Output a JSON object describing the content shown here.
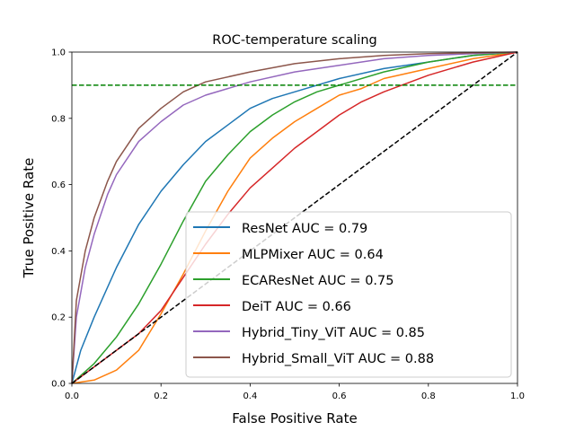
{
  "chart_data": {
    "type": "line",
    "title": "ROC-temperature scaling",
    "xlabel": "False Positive Rate",
    "ylabel": "True Positive Rate",
    "xlim": [
      0,
      1
    ],
    "ylim": [
      0,
      1
    ],
    "xticks": [
      "0.0",
      "0.2",
      "0.4",
      "0.6",
      "0.8",
      "1.0"
    ],
    "yticks": [
      "0.0",
      "0.2",
      "0.4",
      "0.6",
      "0.8",
      "1.0"
    ],
    "grid": false,
    "legend_placement": "lower right",
    "reference_lines": [
      {
        "kind": "diagonal",
        "color": "#000000",
        "style": "dashed",
        "points": [
          [
            0,
            0
          ],
          [
            1,
            1
          ]
        ]
      },
      {
        "kind": "horizontal",
        "color": "#008000",
        "style": "dashed",
        "y": 0.9
      }
    ],
    "series": [
      {
        "name": "ResNet AUC = 0.79",
        "color": "#1f77b4",
        "points": [
          [
            0,
            0
          ],
          [
            0.02,
            0.1
          ],
          [
            0.05,
            0.2
          ],
          [
            0.1,
            0.35
          ],
          [
            0.15,
            0.48
          ],
          [
            0.2,
            0.58
          ],
          [
            0.25,
            0.66
          ],
          [
            0.3,
            0.73
          ],
          [
            0.35,
            0.78
          ],
          [
            0.4,
            0.83
          ],
          [
            0.45,
            0.86
          ],
          [
            0.5,
            0.88
          ],
          [
            0.6,
            0.92
          ],
          [
            0.7,
            0.95
          ],
          [
            0.8,
            0.97
          ],
          [
            0.9,
            0.99
          ],
          [
            1,
            1
          ]
        ]
      },
      {
        "name": "MLPMixer AUC = 0.64",
        "color": "#ff7f0e",
        "points": [
          [
            0,
            0
          ],
          [
            0.05,
            0.01
          ],
          [
            0.1,
            0.04
          ],
          [
            0.15,
            0.1
          ],
          [
            0.2,
            0.21
          ],
          [
            0.25,
            0.33
          ],
          [
            0.3,
            0.46
          ],
          [
            0.35,
            0.58
          ],
          [
            0.4,
            0.68
          ],
          [
            0.45,
            0.74
          ],
          [
            0.5,
            0.79
          ],
          [
            0.55,
            0.83
          ],
          [
            0.6,
            0.87
          ],
          [
            0.65,
            0.89
          ],
          [
            0.7,
            0.92
          ],
          [
            0.8,
            0.95
          ],
          [
            0.9,
            0.98
          ],
          [
            1,
            1
          ]
        ]
      },
      {
        "name": "ECAResNet AUC = 0.75",
        "color": "#2ca02c",
        "points": [
          [
            0,
            0
          ],
          [
            0.05,
            0.06
          ],
          [
            0.1,
            0.14
          ],
          [
            0.15,
            0.24
          ],
          [
            0.2,
            0.36
          ],
          [
            0.25,
            0.49
          ],
          [
            0.3,
            0.61
          ],
          [
            0.35,
            0.69
          ],
          [
            0.4,
            0.76
          ],
          [
            0.45,
            0.81
          ],
          [
            0.5,
            0.85
          ],
          [
            0.55,
            0.88
          ],
          [
            0.6,
            0.9
          ],
          [
            0.7,
            0.94
          ],
          [
            0.8,
            0.97
          ],
          [
            0.9,
            0.99
          ],
          [
            1,
            1
          ]
        ]
      },
      {
        "name": "DeiT AUC = 0.66",
        "color": "#d62728",
        "points": [
          [
            0,
            0
          ],
          [
            0.05,
            0.05
          ],
          [
            0.1,
            0.1
          ],
          [
            0.15,
            0.15
          ],
          [
            0.2,
            0.22
          ],
          [
            0.25,
            0.32
          ],
          [
            0.3,
            0.42
          ],
          [
            0.35,
            0.51
          ],
          [
            0.4,
            0.59
          ],
          [
            0.45,
            0.65
          ],
          [
            0.5,
            0.71
          ],
          [
            0.55,
            0.76
          ],
          [
            0.6,
            0.81
          ],
          [
            0.65,
            0.85
          ],
          [
            0.7,
            0.88
          ],
          [
            0.8,
            0.93
          ],
          [
            0.9,
            0.97
          ],
          [
            1,
            1
          ]
        ]
      },
      {
        "name": "Hybrid_Tiny_ViT AUC = 0.85",
        "color": "#9467bd",
        "points": [
          [
            0,
            0
          ],
          [
            0.01,
            0.2
          ],
          [
            0.03,
            0.35
          ],
          [
            0.05,
            0.45
          ],
          [
            0.08,
            0.57
          ],
          [
            0.1,
            0.63
          ],
          [
            0.15,
            0.73
          ],
          [
            0.2,
            0.79
          ],
          [
            0.25,
            0.84
          ],
          [
            0.3,
            0.87
          ],
          [
            0.4,
            0.91
          ],
          [
            0.5,
            0.94
          ],
          [
            0.6,
            0.96
          ],
          [
            0.7,
            0.98
          ],
          [
            0.8,
            0.99
          ],
          [
            0.9,
            0.995
          ],
          [
            1,
            1
          ]
        ]
      },
      {
        "name": "Hybrid_Small_ViT AUC = 0.88",
        "color": "#8c564b",
        "points": [
          [
            0,
            0
          ],
          [
            0.01,
            0.25
          ],
          [
            0.03,
            0.4
          ],
          [
            0.05,
            0.5
          ],
          [
            0.08,
            0.61
          ],
          [
            0.1,
            0.67
          ],
          [
            0.15,
            0.77
          ],
          [
            0.2,
            0.83
          ],
          [
            0.25,
            0.88
          ],
          [
            0.3,
            0.91
          ],
          [
            0.4,
            0.94
          ],
          [
            0.5,
            0.965
          ],
          [
            0.6,
            0.98
          ],
          [
            0.7,
            0.99
          ],
          [
            0.8,
            0.995
          ],
          [
            0.9,
            0.998
          ],
          [
            1,
            1
          ]
        ]
      }
    ]
  }
}
